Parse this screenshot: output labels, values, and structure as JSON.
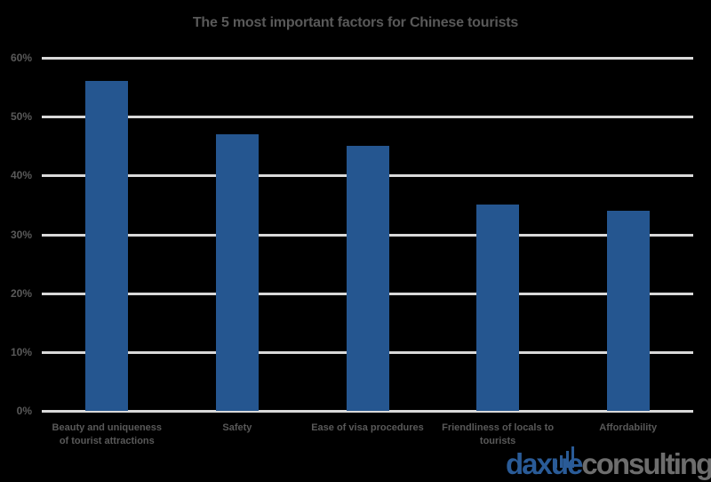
{
  "chart_data": {
    "type": "bar",
    "title": "The 5 most important factors for Chinese tourists",
    "categories": [
      "Beauty and uniqueness of tourist attractions",
      "Safety",
      "Ease of visa procedures",
      "Friendliness of locals to tourists",
      "Affordability"
    ],
    "values": [
      56,
      47,
      45,
      35,
      34
    ],
    "value_format": "percent",
    "xlabel": "",
    "ylabel": "",
    "ylim": [
      0,
      60
    ],
    "yticks": [
      "0%",
      "10%",
      "20%",
      "30%",
      "40%",
      "50%",
      "60%"
    ],
    "grid": true,
    "legend": "none",
    "bar_color": "#255690"
  },
  "chart": {
    "title": "The 5 most important factors for Chinese tourists",
    "yticks": [
      "0%",
      "10%",
      "20%",
      "30%",
      "40%",
      "50%",
      "60%"
    ],
    "xlabels": [
      {
        "line1": "Beauty and uniqueness",
        "line2": "of tourist attractions"
      },
      {
        "line1": "Safety",
        "line2": ""
      },
      {
        "line1": "Ease of visa procedures",
        "line2": ""
      },
      {
        "line1": "Friendliness of locals to",
        "line2": "tourists"
      },
      {
        "line1": "Affordability",
        "line2": ""
      }
    ]
  },
  "watermark": {
    "part1": "daxue",
    "part2": "consulting",
    "color1": "#2a5b97",
    "color2": "#6d6d6d"
  }
}
